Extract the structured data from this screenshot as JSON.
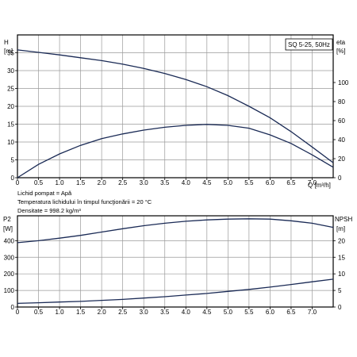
{
  "badge": "SQ 5-25, 50Hz",
  "info_lines": [
    "Lichid pompat = Apă",
    "Temperatura lichidului în timpul funcţionării = 20 °C",
    "Densitate = 998.2 kg/m³"
  ],
  "colors": {
    "curve": "#1a2a55",
    "frame": "#000000",
    "grid": "#9a9a9a"
  },
  "chart_data": [
    {
      "type": "line",
      "x_axis": {
        "label": "Q [m³/h]",
        "range": [
          0,
          7.5
        ],
        "tick_labels": [
          "0",
          "0.5",
          "1.0",
          "1.5",
          "2.0",
          "2.5",
          "3.0",
          "3.5",
          "4.0",
          "4.5",
          "5.0",
          "5.5",
          "6.0",
          "6.5",
          "7.0"
        ]
      },
      "y_left": {
        "label": "H",
        "unit": "[m]",
        "range": [
          0,
          40
        ],
        "tick_labels": [
          "0",
          "5",
          "10",
          "15",
          "20",
          "25",
          "30",
          "35"
        ]
      },
      "y_right": {
        "label": "eta",
        "unit": "[%]",
        "range": [
          0,
          150
        ],
        "tick_labels": [
          "0",
          "20",
          "40",
          "60",
          "80",
          "100"
        ]
      },
      "series": [
        {
          "axis": "left",
          "x": [
            0,
            0.5,
            1.0,
            1.5,
            2.0,
            2.5,
            3.0,
            3.5,
            4.0,
            4.5,
            5.0,
            5.5,
            6.0,
            6.5,
            7.0,
            7.5
          ],
          "y": [
            35.8,
            35.1,
            34.4,
            33.6,
            32.8,
            31.8,
            30.6,
            29.2,
            27.5,
            25.5,
            23.0,
            20.0,
            16.8,
            12.9,
            8.6,
            4.2
          ]
        },
        {
          "axis": "right",
          "x": [
            0,
            0.5,
            1.0,
            1.5,
            2.0,
            2.5,
            3.0,
            3.5,
            4.0,
            4.5,
            5.0,
            5.5,
            6.0,
            6.5,
            7.0,
            7.5
          ],
          "y": [
            0,
            14,
            25,
            34,
            41,
            46,
            50,
            53,
            55,
            56,
            55,
            52,
            45,
            36,
            24,
            11
          ]
        }
      ]
    },
    {
      "type": "line",
      "x_axis": {
        "range": [
          0,
          7.5
        ],
        "tick_labels": [
          "0",
          "0.5",
          "1.0",
          "1.5",
          "2.0",
          "2.5",
          "3.0",
          "3.5",
          "4.0",
          "4.5",
          "5.0",
          "5.5",
          "6.0",
          "6.5",
          "7.0"
        ]
      },
      "y_left": {
        "label": "P2",
        "unit": "[W]",
        "range": [
          0,
          550
        ],
        "tick_labels": [
          "0",
          "100",
          "200",
          "300",
          "400"
        ]
      },
      "y_right": {
        "label": "NPSH",
        "unit": "[m]",
        "range": [
          0,
          27.5
        ],
        "tick_labels": [
          "0",
          "5",
          "10",
          "15",
          "20"
        ]
      },
      "series": [
        {
          "axis": "left",
          "x": [
            0,
            0.5,
            1.0,
            1.5,
            2.0,
            2.5,
            3.0,
            3.5,
            4.0,
            4.5,
            5.0,
            5.5,
            6.0,
            6.5,
            7.0,
            7.5
          ],
          "y": [
            388,
            400,
            415,
            432,
            452,
            472,
            490,
            505,
            517,
            525,
            530,
            532,
            530,
            520,
            505,
            480
          ]
        },
        {
          "axis": "right",
          "x": [
            0,
            0.5,
            1.0,
            1.5,
            2.0,
            2.5,
            3.0,
            3.5,
            4.0,
            4.5,
            5.0,
            5.5,
            6.0,
            6.5,
            7.0,
            7.5
          ],
          "y": [
            1.1,
            1.3,
            1.5,
            1.7,
            2.0,
            2.3,
            2.7,
            3.1,
            3.6,
            4.1,
            4.7,
            5.3,
            6.0,
            6.8,
            7.6,
            8.4
          ]
        }
      ]
    }
  ]
}
